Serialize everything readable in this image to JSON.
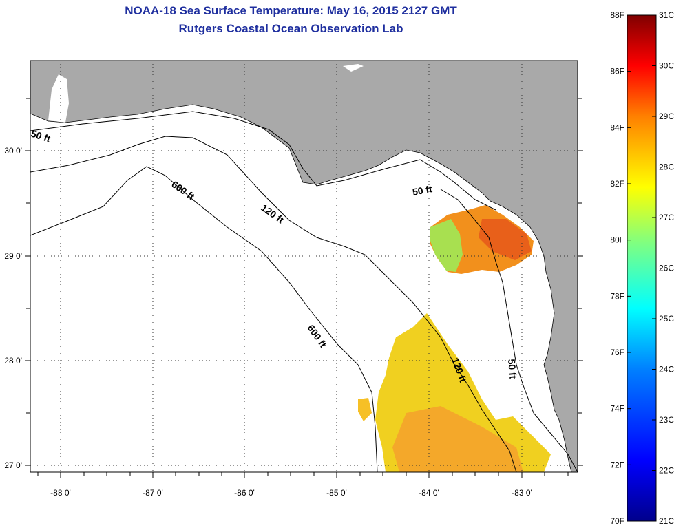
{
  "header": {
    "title": "NOAA-18 Sea Surface Temperature:  May 16, 2015 2127 GMT",
    "subtitle": "Rutgers Coastal Ocean Observation Lab"
  },
  "map": {
    "lon_ticks": [
      "-88 0'",
      "-87 0'",
      "-86 0'",
      "-85 0'",
      "-84 0'",
      "-83 0'"
    ],
    "lat_ticks": [
      "30 0'",
      "29 0'",
      "28 0'",
      "27 0'"
    ],
    "contour_labels": [
      "50 ft",
      "600 ft",
      "120 ft",
      "50 ft",
      "600 ft",
      "120 ft",
      "50 ft"
    ],
    "colors": {
      "land": "#a9a9a9",
      "ocean": "#ffffff",
      "frame": "#000000"
    }
  },
  "colorbar": {
    "f_labels": [
      "88F",
      "86F",
      "84F",
      "82F",
      "80F",
      "78F",
      "76F",
      "74F",
      "72F",
      "70F"
    ],
    "c_labels": [
      "31C",
      "30C",
      "29C",
      "28C",
      "27C",
      "26C",
      "25C",
      "24C",
      "23C",
      "22C",
      "21C"
    ],
    "stops": [
      "#00008c",
      "#0000ff",
      "#0080ff",
      "#00ffff",
      "#80ff80",
      "#ffff00",
      "#ff8000",
      "#ff0000",
      "#800000"
    ]
  }
}
